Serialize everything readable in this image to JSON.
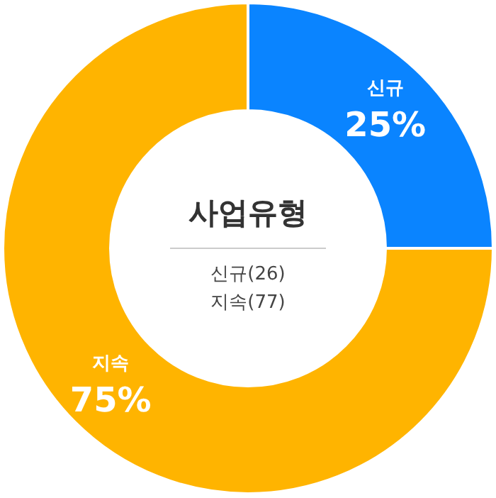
{
  "chart_data": {
    "type": "donut",
    "title": "사업유형",
    "categories": [
      "신규",
      "지속"
    ],
    "values": [
      25,
      75
    ],
    "colors": [
      "#0a84ff",
      "#ffb400"
    ],
    "value_labels": [
      "25%",
      "75%"
    ],
    "annotations": [
      "신규(26)",
      "지속(77)"
    ]
  }
}
